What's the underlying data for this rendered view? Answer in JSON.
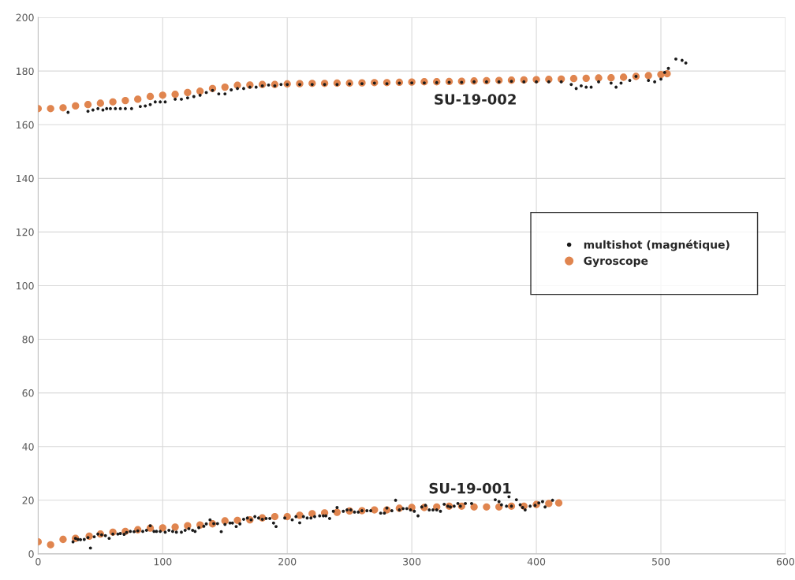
{
  "chart_data": {
    "type": "scatter",
    "xlim": [
      0,
      600
    ],
    "ylim": [
      0,
      200
    ],
    "xticks": [
      0,
      100,
      200,
      300,
      400,
      500,
      600
    ],
    "yticks": [
      0,
      20,
      40,
      60,
      80,
      100,
      120,
      140,
      160,
      180,
      200
    ],
    "grid": true,
    "legend": "right",
    "marker": "circle",
    "annotations": [
      "SU-19-002",
      "SU-19-001"
    ],
    "series": [
      {
        "name": "multishot (magnétique)",
        "color": "#1a1a1a",
        "x": [
          24,
          40,
          44,
          48,
          52,
          55,
          58,
          62,
          66,
          70,
          75,
          82,
          86,
          90,
          94,
          98,
          102,
          110,
          115,
          120,
          125,
          130,
          135,
          140,
          145,
          150,
          155,
          160,
          165,
          170,
          175,
          180,
          185,
          190,
          195,
          200,
          210,
          220,
          230,
          240,
          250,
          260,
          270,
          280,
          290,
          300,
          310,
          320,
          330,
          340,
          350,
          360,
          370,
          380,
          390,
          400,
          410,
          420,
          428,
          432,
          436,
          440,
          444,
          450,
          460,
          464,
          468,
          475,
          480,
          490,
          495,
          500,
          503,
          506,
          512,
          517,
          520,
          28,
          30,
          32,
          34,
          37,
          40,
          42,
          45,
          48,
          51,
          54,
          57,
          60,
          64,
          66,
          69,
          71,
          74,
          77,
          80,
          84,
          87,
          90,
          93,
          95,
          98,
          102,
          105,
          108,
          111,
          115,
          118,
          121,
          124,
          126,
          129,
          133,
          135,
          138,
          141,
          144,
          147,
          150,
          154,
          156,
          159,
          162,
          165,
          168,
          171,
          174,
          177,
          180,
          183,
          186,
          189,
          191,
          198,
          204,
          207,
          210,
          213,
          216,
          219,
          222,
          226,
          229,
          231,
          234,
          237,
          240,
          245,
          248,
          251,
          254,
          257,
          260,
          264,
          267,
          275,
          278,
          280,
          284,
          287,
          290,
          293,
          296,
          299,
          302,
          305,
          308,
          311,
          314,
          317,
          320,
          323,
          326,
          329,
          331,
          334,
          337,
          339,
          343,
          348,
          367,
          370,
          372,
          376,
          378,
          380,
          384,
          387,
          389,
          391,
          395,
          399,
          402,
          405,
          407,
          413
        ],
        "values": [
          164.6,
          165,
          165.5,
          166,
          165.5,
          166,
          166,
          166,
          166,
          166,
          166,
          166.8,
          167,
          167.5,
          168.5,
          168.5,
          168.5,
          169.5,
          169.5,
          170,
          170.5,
          171,
          172,
          172.8,
          171.5,
          171.5,
          173,
          173.5,
          173.5,
          174,
          174,
          174.5,
          174.8,
          174.5,
          175,
          175,
          175,
          175,
          175,
          175,
          175.2,
          175.3,
          175.5,
          175.3,
          175.5,
          175.6,
          175.6,
          175.7,
          175.8,
          175.8,
          176,
          176,
          176,
          176.2,
          176,
          176,
          176,
          176,
          175,
          173.5,
          174.5,
          174,
          174,
          176,
          175.5,
          174,
          175.5,
          176.5,
          178,
          176.5,
          176,
          177,
          179.5,
          181,
          184.5,
          184,
          183,
          4.5,
          5.8,
          5.4,
          5.3,
          5.4,
          6.1,
          2.2,
          6.4,
          7.4,
          7.1,
          6.8,
          5.8,
          7.4,
          7.4,
          7.6,
          7.3,
          8,
          8.4,
          8.3,
          8.6,
          8.4,
          8.8,
          10.5,
          8.4,
          8.4,
          8.4,
          8.1,
          8.8,
          8.4,
          8.1,
          8.1,
          8.8,
          9.4,
          8.8,
          8.4,
          9.8,
          10.3,
          11.2,
          12.7,
          11.3,
          11.3,
          8.3,
          11,
          11.5,
          11.5,
          10.2,
          11.2,
          12.9,
          13.4,
          12.7,
          13.9,
          13.4,
          12.9,
          13.2,
          13.2,
          11.5,
          10.2,
          13.4,
          12.7,
          13.9,
          11.6,
          13.9,
          13.4,
          13.4,
          13.9,
          14.2,
          14.2,
          14.2,
          13.2,
          15.9,
          17.3,
          15.9,
          16.4,
          16.4,
          15.6,
          15.6,
          16.1,
          16.1,
          16.1,
          15.2,
          15.2,
          17.1,
          16.1,
          20,
          16.4,
          16.9,
          16.9,
          16.4,
          15.9,
          14.2,
          17.5,
          18.1,
          16.4,
          16.4,
          16.4,
          15.9,
          18.5,
          17.8,
          17.5,
          17.8,
          18.8,
          17.8,
          18.8,
          18.8,
          20.2,
          19.5,
          18.3,
          17.8,
          21.3,
          17.8,
          20.2,
          18.3,
          17.3,
          16.4,
          17.8,
          18.1,
          19,
          19.5,
          17.5,
          20
        ]
      },
      {
        "name": "Gyroscope",
        "color": "#e0854f",
        "x": [
          0,
          10,
          20,
          30,
          40,
          50,
          60,
          70,
          80,
          90,
          100,
          110,
          120,
          130,
          140,
          150,
          160,
          170,
          180,
          190,
          200,
          210,
          220,
          230,
          240,
          250,
          260,
          270,
          280,
          290,
          300,
          310,
          320,
          330,
          340,
          350,
          360,
          370,
          380,
          390,
          400,
          410,
          420,
          430,
          440,
          450,
          460,
          470,
          480,
          490,
          500,
          505,
          0,
          10,
          20,
          30,
          41,
          50,
          60,
          70,
          80,
          90,
          100,
          110,
          120,
          130,
          140,
          150,
          160,
          170,
          180,
          190,
          200,
          210,
          220,
          230,
          240,
          250,
          260,
          270,
          280,
          290,
          300,
          310,
          320,
          330,
          340,
          350,
          360,
          370,
          380,
          390,
          400,
          410,
          418
        ],
        "values": [
          166,
          166,
          166.3,
          167,
          167.5,
          168,
          168.5,
          169,
          169.5,
          170.5,
          171,
          171.3,
          172,
          172.5,
          173.5,
          174,
          174.7,
          174.8,
          175,
          175,
          175.2,
          175.3,
          175.4,
          175.4,
          175.5,
          175.5,
          175.6,
          175.7,
          175.7,
          175.8,
          175.9,
          176,
          176,
          176.1,
          176.2,
          176.3,
          176.4,
          176.5,
          176.6,
          176.7,
          176.8,
          176.9,
          177,
          177.2,
          177.3,
          177.4,
          177.5,
          177.7,
          178,
          178.3,
          178.7,
          179,
          4.5,
          3.4,
          5.4,
          5.8,
          6.6,
          7.4,
          8.1,
          8.4,
          9,
          9.6,
          9.7,
          10,
          10.5,
          10.8,
          11.2,
          12.3,
          12.5,
          12.7,
          13.4,
          13.9,
          13.9,
          14.4,
          15,
          15.3,
          15.5,
          16,
          16.1,
          16.4,
          16.4,
          17,
          17.3,
          17.3,
          17.5,
          17.8,
          17.8,
          17.5,
          17.5,
          17.5,
          17.8,
          17.8,
          18.4,
          18.8,
          19
        ]
      }
    ]
  }
}
